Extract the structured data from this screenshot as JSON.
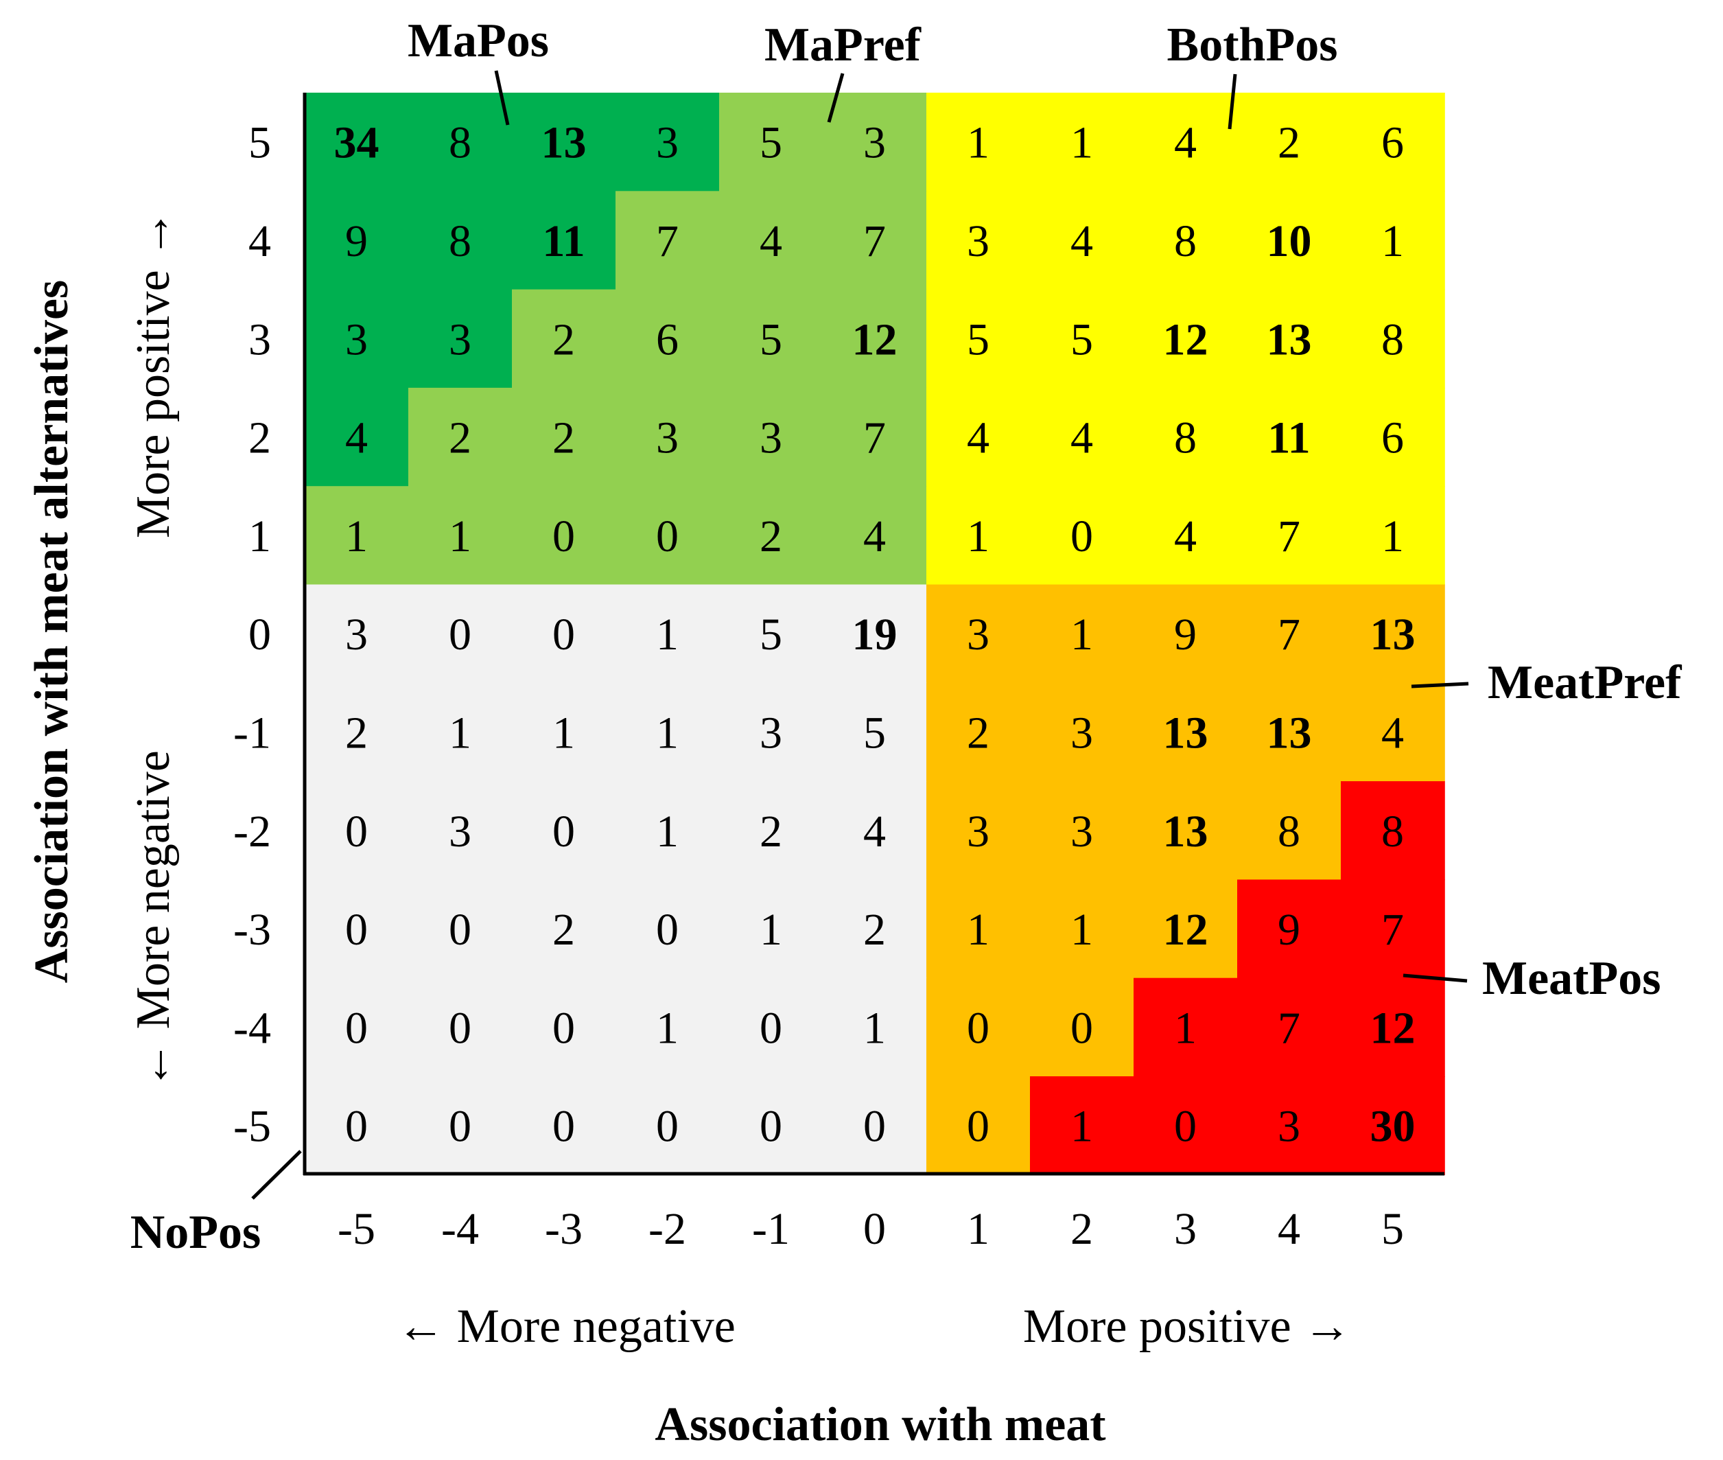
{
  "chart_data": {
    "type": "heatmap",
    "title": "",
    "xlabel": "Association with meat",
    "ylabel": "Association with meat alternatives",
    "x_direction": {
      "negative": "← More negative",
      "positive": "More positive →"
    },
    "y_direction": {
      "negative": "← More negative",
      "positive": "More positive →"
    },
    "x": [
      "-5",
      "-4",
      "-3",
      "-2",
      "-1",
      "0",
      "1",
      "2",
      "3",
      "4",
      "5"
    ],
    "y": [
      "5",
      "4",
      "3",
      "2",
      "1",
      "0",
      "-1",
      "-2",
      "-3",
      "-4",
      "-5"
    ],
    "values": [
      [
        34,
        8,
        13,
        3,
        5,
        3,
        1,
        1,
        4,
        2,
        6
      ],
      [
        9,
        8,
        11,
        7,
        4,
        7,
        3,
        4,
        8,
        10,
        1
      ],
      [
        3,
        3,
        2,
        6,
        5,
        12,
        5,
        5,
        12,
        13,
        8
      ],
      [
        4,
        2,
        2,
        3,
        3,
        7,
        4,
        4,
        8,
        11,
        6
      ],
      [
        1,
        1,
        0,
        0,
        2,
        4,
        1,
        0,
        4,
        7,
        1
      ],
      [
        3,
        0,
        0,
        1,
        5,
        19,
        3,
        1,
        9,
        7,
        13
      ],
      [
        2,
        1,
        1,
        1,
        3,
        5,
        2,
        3,
        13,
        13,
        4
      ],
      [
        0,
        3,
        0,
        1,
        2,
        4,
        3,
        3,
        13,
        8,
        8
      ],
      [
        0,
        0,
        2,
        0,
        1,
        2,
        1,
        1,
        12,
        9,
        7
      ],
      [
        0,
        0,
        0,
        1,
        0,
        1,
        0,
        0,
        1,
        7,
        12
      ],
      [
        0,
        0,
        0,
        0,
        0,
        0,
        0,
        1,
        0,
        3,
        30
      ]
    ],
    "bold_threshold": 10,
    "groups": [
      {
        "key": "MaPos",
        "label": "MaPos",
        "color": "#00b050"
      },
      {
        "key": "MaPref",
        "label": "MaPref",
        "color": "#92d050"
      },
      {
        "key": "BothPos",
        "label": "BothPos",
        "color": "#ffff00"
      },
      {
        "key": "MeatPref",
        "label": "MeatPref",
        "color": "#ffc000"
      },
      {
        "key": "MeatPos",
        "label": "MeatPos",
        "color": "#ff0000"
      },
      {
        "key": "NoPos",
        "label": "NoPos",
        "color": "#f2f2f2"
      }
    ],
    "group_map": [
      [
        "MaPos",
        "MaPos",
        "MaPos",
        "MaPos",
        "MaPref",
        "MaPref",
        "BothPos",
        "BothPos",
        "BothPos",
        "BothPos",
        "BothPos"
      ],
      [
        "MaPos",
        "MaPos",
        "MaPos",
        "MaPref",
        "MaPref",
        "MaPref",
        "BothPos",
        "BothPos",
        "BothPos",
        "BothPos",
        "BothPos"
      ],
      [
        "MaPos",
        "MaPos",
        "MaPref",
        "MaPref",
        "MaPref",
        "MaPref",
        "BothPos",
        "BothPos",
        "BothPos",
        "BothPos",
        "BothPos"
      ],
      [
        "MaPos",
        "MaPref",
        "MaPref",
        "MaPref",
        "MaPref",
        "MaPref",
        "BothPos",
        "BothPos",
        "BothPos",
        "BothPos",
        "BothPos"
      ],
      [
        "MaPref",
        "MaPref",
        "MaPref",
        "MaPref",
        "MaPref",
        "MaPref",
        "BothPos",
        "BothPos",
        "BothPos",
        "BothPos",
        "BothPos"
      ],
      [
        "NoPos",
        "NoPos",
        "NoPos",
        "NoPos",
        "NoPos",
        "NoPos",
        "MeatPref",
        "MeatPref",
        "MeatPref",
        "MeatPref",
        "MeatPref"
      ],
      [
        "NoPos",
        "NoPos",
        "NoPos",
        "NoPos",
        "NoPos",
        "NoPos",
        "MeatPref",
        "MeatPref",
        "MeatPref",
        "MeatPref",
        "MeatPref"
      ],
      [
        "NoPos",
        "NoPos",
        "NoPos",
        "NoPos",
        "NoPos",
        "NoPos",
        "MeatPref",
        "MeatPref",
        "MeatPref",
        "MeatPref",
        "MeatPos"
      ],
      [
        "NoPos",
        "NoPos",
        "NoPos",
        "NoPos",
        "NoPos",
        "NoPos",
        "MeatPref",
        "MeatPref",
        "MeatPref",
        "MeatPos",
        "MeatPos"
      ],
      [
        "NoPos",
        "NoPos",
        "NoPos",
        "NoPos",
        "NoPos",
        "NoPos",
        "MeatPref",
        "MeatPref",
        "MeatPos",
        "MeatPos",
        "MeatPos"
      ],
      [
        "NoPos",
        "NoPos",
        "NoPos",
        "NoPos",
        "NoPos",
        "NoPos",
        "MeatPref",
        "MeatPos",
        "MeatPos",
        "MeatPos",
        "MeatPos"
      ]
    ]
  }
}
